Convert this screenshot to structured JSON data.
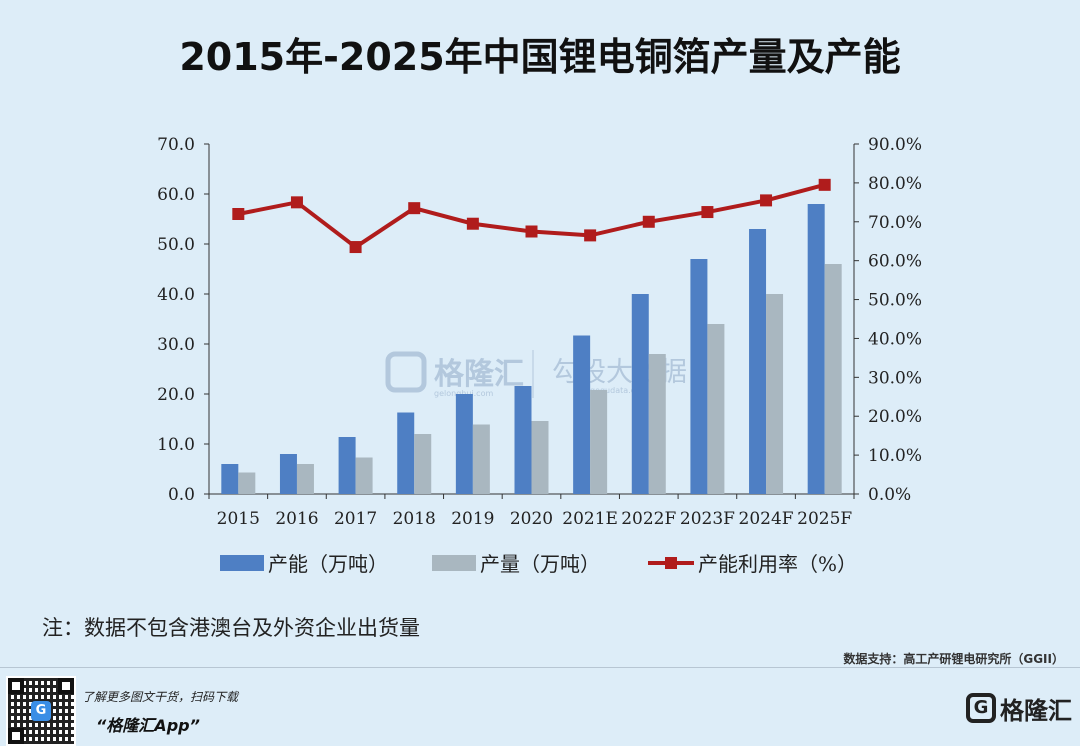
{
  "title": "2015年-2025年中国锂电铜箔产量及产能",
  "note": "注：数据不包含港澳台及外资企业出货量",
  "source": "数据支持：高工产研锂电研究所（GGII）",
  "watermark": {
    "brand": "格隆汇",
    "domain": "gelonghui.com",
    "brand2": "勾股大数据",
    "domain2": "gogudata.com"
  },
  "footer": {
    "promo": "了解更多图文干货，扫码下载",
    "app_name": "“格隆汇App”",
    "brand": "格隆汇"
  },
  "colors": {
    "capacity": "#4e7fc4",
    "output": "#a9b7c0",
    "utilization": "#b01c1c",
    "background": "#ddedf8"
  },
  "chart_data": {
    "type": "bar",
    "categories": [
      "2015",
      "2016",
      "2017",
      "2018",
      "2019",
      "2020",
      "2021E",
      "2022F",
      "2023F",
      "2024F",
      "2025F"
    ],
    "series": [
      {
        "name": "产能（万吨）",
        "type": "bar",
        "axis": "left",
        "values": [
          6,
          8,
          11.4,
          16.3,
          20,
          21.6,
          31.7,
          40,
          47,
          53,
          58
        ]
      },
      {
        "name": "产量（万吨）",
        "type": "bar",
        "axis": "left",
        "values": [
          4.3,
          6,
          7.3,
          12,
          13.9,
          14.6,
          20.8,
          28,
          34,
          40,
          46
        ]
      },
      {
        "name": "产能利用率（%）",
        "type": "line",
        "axis": "right",
        "values": [
          72,
          75,
          63.5,
          73.5,
          69.5,
          67.5,
          66.5,
          70,
          72.5,
          75.5,
          79.5
        ]
      }
    ],
    "y_left": {
      "min": 0,
      "max": 70,
      "step": 10,
      "tick_labels": [
        "0.0",
        "10.0",
        "20.0",
        "30.0",
        "40.0",
        "50.0",
        "60.0",
        "70.0"
      ]
    },
    "y_right": {
      "min": 0,
      "max": 90,
      "step": 10,
      "tick_labels": [
        "0.0%",
        "10.0%",
        "20.0%",
        "30.0%",
        "40.0%",
        "50.0%",
        "60.0%",
        "70.0%",
        "80.0%",
        "90.0%"
      ]
    },
    "legend_position": "bottom",
    "grid": false
  }
}
